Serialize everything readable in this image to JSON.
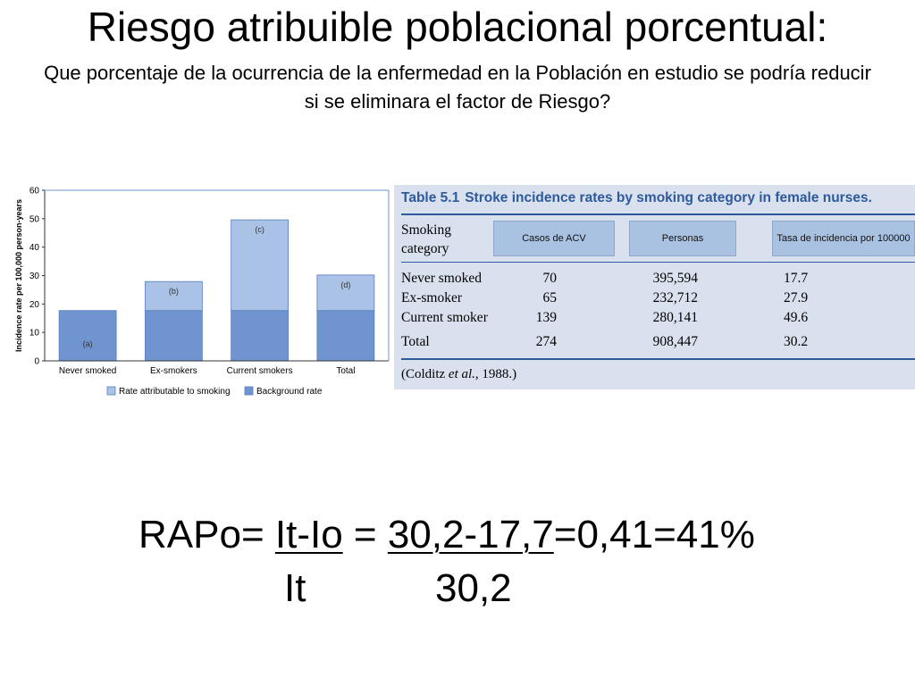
{
  "title": "Riesgo atribuible poblacional porcentual:",
  "subtitle": "Que porcentaje de la ocurrencia de la enfermedad en la Población en estudio se podría reducir si se eliminara el factor de Riesgo?",
  "chart_data": {
    "type": "bar",
    "stacked": true,
    "categories": [
      "Never smoked",
      "Ex-smokers",
      "Current smokers",
      "Total"
    ],
    "series": [
      {
        "name": "Background rate",
        "values": [
          17.7,
          17.7,
          17.7,
          17.7
        ],
        "color": "#6f94cf"
      },
      {
        "name": "Rate attributable to smoking",
        "values": [
          0,
          10.2,
          31.9,
          12.5
        ],
        "color": "#a9c2e6"
      }
    ],
    "bar_labels": [
      "(a)",
      "(b)",
      "(c)",
      "(d)"
    ],
    "ylabel": "Incidence rate per 100,000 person-years",
    "ylim": [
      0,
      60
    ],
    "yticks": [
      0,
      10,
      20,
      30,
      40,
      50,
      60
    ],
    "grid": false,
    "legend": "bottom"
  },
  "table": {
    "label": "Table 5.1",
    "caption": "Stroke incidence rates by smoking category in female nurses.",
    "col_header": "Smoking category",
    "overlay_headers": [
      "Casos de ACV",
      "Personas",
      "Tasa de incidencia por 100000"
    ],
    "rows": [
      {
        "category": "Never smoked",
        "cases": "70",
        "persons": "395,594",
        "rate": "17.7"
      },
      {
        "category": "Ex-smoker",
        "cases": "65",
        "persons": "232,712",
        "rate": "27.9"
      },
      {
        "category": "Current smoker",
        "cases": "139",
        "persons": "280,141",
        "rate": "49.6"
      }
    ],
    "total": {
      "category": "Total",
      "cases": "274",
      "persons": "908,447",
      "rate": "30.2"
    },
    "source_prefix": "(Colditz ",
    "source_italic": "et al.",
    "source_suffix": ", 1988.)"
  },
  "formula": {
    "prefix": "RAPo= ",
    "numerator": "It-Io",
    "equals": " =  ",
    "value_numerator": "30,2-17,7",
    "result": "=0,41=41%",
    "denominator": "It",
    "value_denominator": "30,2"
  }
}
